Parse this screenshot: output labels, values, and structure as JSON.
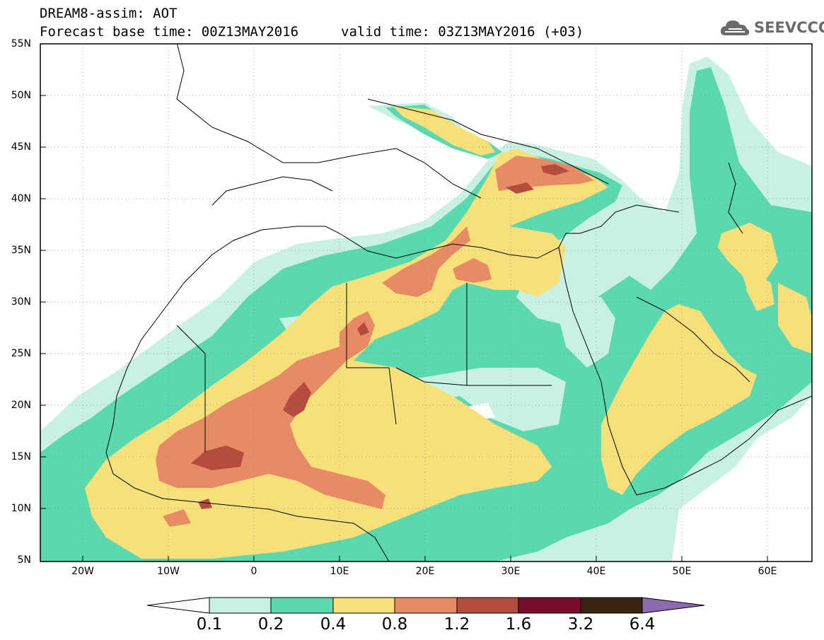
{
  "title": {
    "line1": "DREAM8-assim: AOT",
    "line2": "Forecast base time: 00Z13MAY2016",
    "valid": "valid time: 03Z13MAY2016 (+03)"
  },
  "logo": {
    "text": "SEEVCCC",
    "icon": "cloud-icon"
  },
  "lat_labels": [
    "55N",
    "50N",
    "45N",
    "40N",
    "35N",
    "30N",
    "25N",
    "20N",
    "15N",
    "10N",
    "5N"
  ],
  "lon_labels": [
    "20W",
    "10W",
    "0",
    "10E",
    "20E",
    "30E",
    "40E",
    "50E",
    "60E"
  ],
  "colorbar": {
    "labels": [
      "0.1",
      "0.2",
      "0.4",
      "0.8",
      "1.2",
      "1.6",
      "3.2",
      "6.4"
    ],
    "colors": [
      "#ffffff",
      "#c8f0e4",
      "#5ad8b0",
      "#f7e07a",
      "#e78b65",
      "#b54d3f",
      "#7a0c2e",
      "#3b2311",
      "#8c6ab0"
    ]
  },
  "map": {
    "variable": "AOT",
    "lat_range": [
      5,
      55
    ],
    "lon_range": [
      -25,
      65
    ]
  }
}
